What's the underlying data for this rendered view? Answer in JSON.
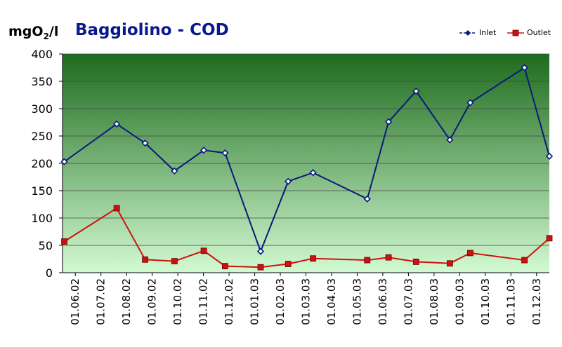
{
  "header": {
    "unit_prefix": "mgO",
    "unit_sub": "2",
    "unit_suffix": "/l",
    "title": "Baggiolino - COD"
  },
  "chart_data": {
    "type": "line",
    "title": "Baggiolino - COD",
    "ylabel": "mgO2/l",
    "xlabel": "",
    "ylim": [
      0,
      400
    ],
    "yticks": [
      "0",
      "50",
      "100",
      "150",
      "200",
      "250",
      "300",
      "350",
      "400"
    ],
    "xticks": [
      "01.06.02",
      "01.07.02",
      "01.08.02",
      "01.09.02",
      "01.10.02",
      "01.11.02",
      "01.12.02",
      "01.01.03",
      "01.02.03",
      "01.03.03",
      "01.04.03",
      "01.05.03",
      "01.06.03",
      "01.07.03",
      "01.08.03",
      "01.09.03",
      "01.10.03",
      "01.11.03",
      "01.12.03"
    ],
    "xrange": [
      "01.06.02",
      "01.12.03"
    ],
    "grid": true,
    "legend_position": "top-right",
    "background": {
      "gradient_top": "#1e6b1e",
      "gradient_bottom": "#d2fad2"
    },
    "series": [
      {
        "name": "Inlet",
        "color": "#0a1a7a",
        "marker": "diamond",
        "points": [
          {
            "x": "03.06.02",
            "y": 203
          },
          {
            "x": "01.08.02",
            "y": 272
          },
          {
            "x": "02.09.02",
            "y": 237
          },
          {
            "x": "05.10.02",
            "y": 186
          },
          {
            "x": "07.11.02",
            "y": 224
          },
          {
            "x": "01.12.02",
            "y": 219
          },
          {
            "x": "10.01.03",
            "y": 39
          },
          {
            "x": "10.02.03",
            "y": 167
          },
          {
            "x": "10.03.03",
            "y": 183
          },
          {
            "x": "10.05.03",
            "y": 135
          },
          {
            "x": "03.06.03",
            "y": 276
          },
          {
            "x": "04.07.03",
            "y": 332
          },
          {
            "x": "11.08.03",
            "y": 243
          },
          {
            "x": "03.09.03",
            "y": 311
          },
          {
            "x": "03.11.03",
            "y": 375
          },
          {
            "x": "01.12.03",
            "y": 213
          }
        ]
      },
      {
        "name": "Outlet",
        "color": "#d01010",
        "marker": "square",
        "points": [
          {
            "x": "03.06.02",
            "y": 57
          },
          {
            "x": "01.08.02",
            "y": 118
          },
          {
            "x": "02.09.02",
            "y": 24
          },
          {
            "x": "05.10.02",
            "y": 21
          },
          {
            "x": "07.11.02",
            "y": 40
          },
          {
            "x": "01.12.02",
            "y": 12
          },
          {
            "x": "10.01.03",
            "y": 10
          },
          {
            "x": "10.02.03",
            "y": 16
          },
          {
            "x": "10.03.03",
            "y": 26
          },
          {
            "x": "10.05.03",
            "y": 23
          },
          {
            "x": "03.06.03",
            "y": 28
          },
          {
            "x": "04.07.03",
            "y": 20
          },
          {
            "x": "11.08.03",
            "y": 17
          },
          {
            "x": "03.09.03",
            "y": 36
          },
          {
            "x": "03.11.03",
            "y": 23
          },
          {
            "x": "01.12.03",
            "y": 63
          }
        ]
      }
    ]
  }
}
